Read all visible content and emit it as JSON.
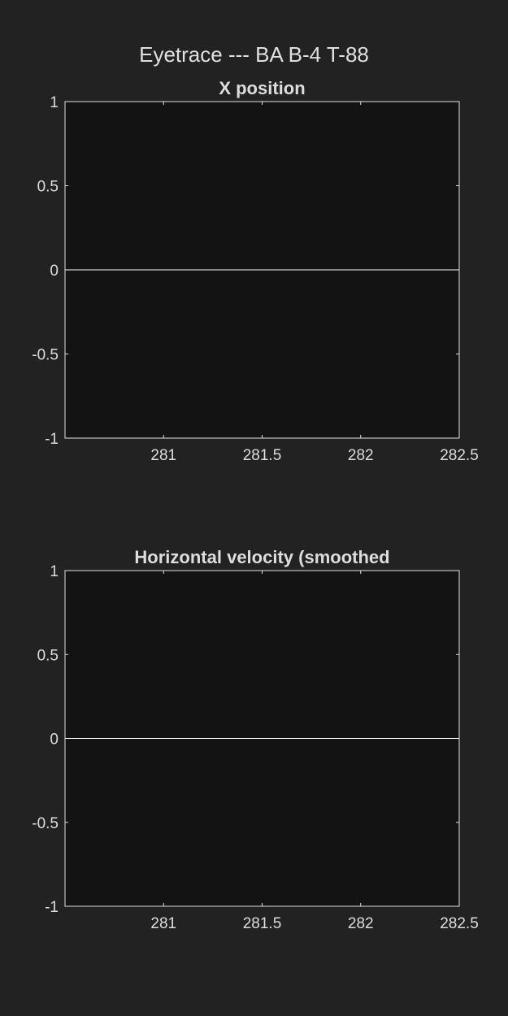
{
  "figure": {
    "title": "Eyetrace --- BA B-4 T-88",
    "background": "#222222",
    "axes_background": "#131313",
    "axes_color": "#e0e0e0",
    "text_color": "#dddddd"
  },
  "chart_data": [
    {
      "type": "line",
      "title": "X position",
      "xlabel": "",
      "ylabel": "",
      "xlim": [
        280.5,
        282.5
      ],
      "ylim": [
        -1,
        1
      ],
      "xticks": [
        281,
        281.5,
        282,
        282.5
      ],
      "xtick_labels": [
        "281",
        "281.5",
        "282",
        "282.5"
      ],
      "yticks": [
        1,
        0.5,
        0,
        -0.5,
        -1
      ],
      "ytick_labels": [
        "1",
        "0.5",
        "0",
        "-0.5",
        "-1"
      ],
      "grid": false,
      "series": [
        {
          "x": [
            280.5,
            282.5
          ],
          "y": [
            0,
            0
          ],
          "color": "#ffffff"
        }
      ]
    },
    {
      "type": "line",
      "title": "Horizontal velocity (smoothed",
      "xlabel": "",
      "ylabel": "",
      "xlim": [
        280.5,
        282.5
      ],
      "ylim": [
        -1,
        1
      ],
      "xticks": [
        281,
        281.5,
        282,
        282.5
      ],
      "xtick_labels": [
        "281",
        "281.5",
        "282",
        "282.5"
      ],
      "yticks": [
        1,
        0.5,
        0,
        -0.5,
        -1
      ],
      "ytick_labels": [
        "1",
        "0.5",
        "0",
        "-0.5",
        "-1"
      ],
      "grid": false,
      "series": [
        {
          "x": [
            280.5,
            282.5
          ],
          "y": [
            0,
            0
          ],
          "color": "#ffffff"
        }
      ]
    }
  ]
}
